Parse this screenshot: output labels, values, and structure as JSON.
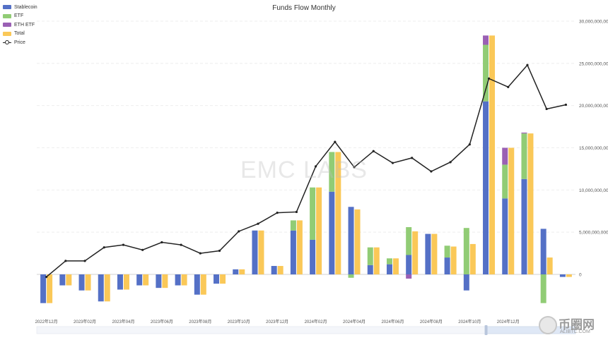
{
  "chart_data": {
    "type": "bar",
    "title": "Funds Flow Monthly",
    "categories": [
      "2022年12月",
      "2023年01月",
      "2023年02月",
      "2023年03月",
      "2023年04月",
      "2023年05月",
      "2023年06月",
      "2023年07月",
      "2023年08月",
      "2023年09月",
      "2023年10月",
      "2023年11月",
      "2023年12月",
      "2024年01月",
      "2024年02月",
      "2024年03月",
      "2024年04月",
      "2024年05月",
      "2024年06月",
      "2024年07月",
      "2024年08月",
      "2024年09月",
      "2024年10月",
      "2024年11月",
      "2024年12月",
      "2025年01月",
      "2025年02月",
      "2025年03月"
    ],
    "x_tick_labels": [
      "2022年12月",
      "2023年02月",
      "2023年04月",
      "2023年06月",
      "2023年08月",
      "2023年10月",
      "2023年12月",
      "2024年02月",
      "2024年04月",
      "2024年06月",
      "2024年08月",
      "2024年10月",
      "2024年12月"
    ],
    "series": [
      {
        "name": "Stablecoin",
        "color": "#5470c6",
        "values": [
          -3400000000,
          -1300000000,
          -1900000000,
          -3200000000,
          -1800000000,
          -1300000000,
          -1600000000,
          -1300000000,
          -2400000000,
          -1100000000,
          600000000,
          5200000000,
          1000000000,
          5200000000,
          4100000000,
          9800000000,
          8000000000,
          1100000000,
          1200000000,
          2300000000,
          4800000000,
          2000000000,
          -1900000000,
          20500000000,
          9000000000,
          11300000000,
          5400000000,
          -300000000
        ]
      },
      {
        "name": "ETF",
        "color": "#91cc75",
        "values": [
          0,
          0,
          0,
          0,
          0,
          0,
          0,
          0,
          0,
          0,
          0,
          0,
          0,
          1200000000,
          6200000000,
          4700000000,
          -400000000,
          2100000000,
          700000000,
          3300000000,
          0,
          1400000000,
          5500000000,
          6700000000,
          4000000000,
          5400000000,
          -3400000000,
          0
        ]
      },
      {
        "name": "ETH ETF",
        "color": "#9a60b4",
        "values": [
          0,
          0,
          0,
          0,
          0,
          0,
          0,
          0,
          0,
          0,
          0,
          0,
          0,
          0,
          0,
          0,
          0,
          0,
          0,
          -500000000,
          0,
          0,
          0,
          1100000000,
          2000000000,
          100000000,
          0,
          0
        ]
      },
      {
        "name": "Total",
        "color": "#fac858",
        "values": [
          -3400000000,
          -1300000000,
          -1900000000,
          -3200000000,
          -1800000000,
          -1300000000,
          -1600000000,
          -1300000000,
          -2400000000,
          -1100000000,
          600000000,
          5200000000,
          1000000000,
          6400000000,
          10300000000,
          14500000000,
          7700000000,
          3200000000,
          1900000000,
          5100000000,
          4800000000,
          3300000000,
          3600000000,
          28300000000,
          15000000000,
          16700000000,
          2000000000,
          -300000000
        ]
      },
      {
        "name": "Price",
        "type": "line",
        "color": "#222222",
        "values": [
          -300000000,
          1600000000,
          1600000000,
          3200000000,
          3500000000,
          2900000000,
          3800000000,
          3500000000,
          2500000000,
          2800000000,
          5100000000,
          6000000000,
          7300000000,
          7400000000,
          12800000000,
          15700000000,
          12700000000,
          14600000000,
          13200000000,
          13800000000,
          12200000000,
          13300000000,
          15400000000,
          23200000000,
          22200000000,
          24800000000,
          19600000000,
          20100000000
        ]
      }
    ],
    "y_axis": {
      "min": -5000000000,
      "max": 30000000000,
      "ticks": [
        0,
        5000000000,
        10000000000,
        15000000000,
        20000000000,
        25000000000,
        30000000000
      ],
      "tick_labels": [
        "0",
        "5,000,000,000",
        "10,000,000,000",
        "15,000,000,000",
        "20,000,000,000",
        "25,000,000,000",
        "30,000,000,000"
      ],
      "position": "right"
    },
    "legend_position": "top-left",
    "grid": true
  },
  "watermark": "EMC LABS",
  "logo": {
    "name": "币圈网",
    "url": "ALIBTC.COM"
  }
}
